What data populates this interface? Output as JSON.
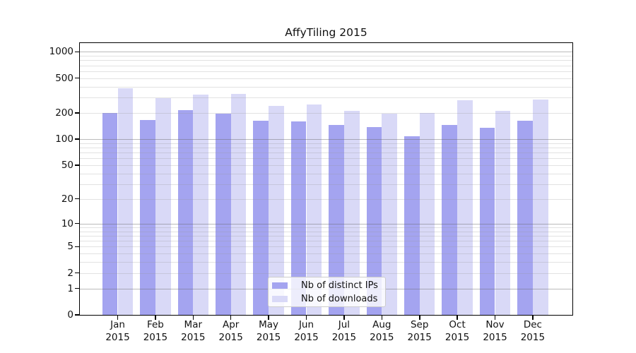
{
  "chart_data": {
    "type": "bar",
    "title": "AffyTiling 2015",
    "categories": [
      "Jan",
      "Feb",
      "Mar",
      "Apr",
      "May",
      "Jun",
      "Jul",
      "Aug",
      "Sep",
      "Oct",
      "Nov",
      "Dec"
    ],
    "x_tick_year_line": "2015",
    "series": [
      {
        "key": "distinct-ips",
        "name": "Nb of distinct IPs",
        "color": "#a4a4f0",
        "values": [
          200,
          165,
          214,
          197,
          162,
          161,
          145,
          139,
          108,
          147,
          134,
          162
        ]
      },
      {
        "key": "downloads",
        "name": "Nb of downloads",
        "color": "#d9d9f7",
        "values": [
          380,
          298,
          325,
          330,
          240,
          252,
          213,
          195,
          199,
          279,
          210,
          284
        ]
      }
    ],
    "y_axis": {
      "scale": "log10(value+1)",
      "tick_values": [
        0,
        1,
        2,
        5,
        10,
        20,
        50,
        100,
        200,
        500,
        1000
      ],
      "major_gridlines": [
        1,
        10,
        100,
        1000
      ],
      "minor_gridlines": [
        2,
        3,
        4,
        5,
        6,
        7,
        8,
        9,
        20,
        30,
        40,
        50,
        60,
        70,
        80,
        90,
        200,
        300,
        400,
        500,
        600,
        700,
        800,
        900
      ],
      "range": [
        0,
        1000
      ]
    },
    "legend": {
      "position": "lower center"
    },
    "grid": true
  },
  "colors": {
    "background": "#ffffff",
    "axis": "#000000",
    "bar_distinct_ips": "#a4a4f0",
    "bar_downloads": "#d9d9f7",
    "major_grid": "#b9b9b9",
    "minor_grid": "#e2e2e2",
    "legend_border": "#cccccc"
  }
}
